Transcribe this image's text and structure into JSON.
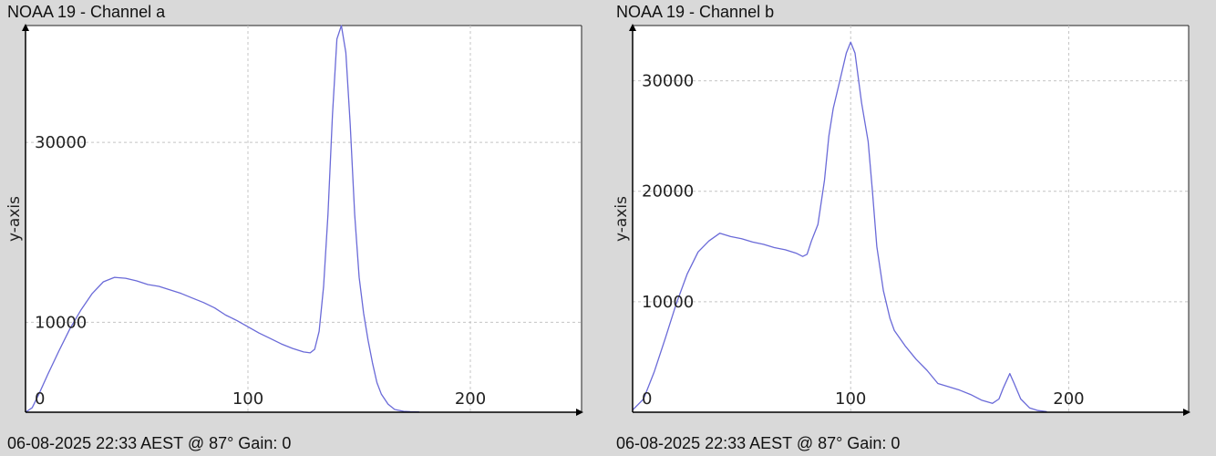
{
  "chart_data": [
    {
      "type": "line",
      "title": "NOAA 19 - Channel a",
      "footer": "06-08-2025 22:33 AEST @ 87° Gain: 0",
      "xlabel": "",
      "ylabel": "y-axis",
      "xlim": [
        0,
        250
      ],
      "ylim": [
        0,
        43000
      ],
      "x_ticks": [
        0,
        100,
        200
      ],
      "y_ticks": [
        10000,
        30000
      ],
      "grid": true,
      "line_color": "#6a6ad8",
      "series": [
        {
          "x": [
            0,
            3,
            6,
            10,
            15,
            20,
            25,
            30,
            35,
            40,
            45,
            50,
            55,
            60,
            65,
            70,
            75,
            80,
            85,
            90,
            95,
            100,
            105,
            110,
            115,
            120,
            125,
            128,
            130,
            132,
            134,
            136,
            138,
            140,
            142,
            144,
            146,
            148,
            150,
            152,
            154,
            156,
            158,
            160,
            163,
            166,
            170,
            173,
            177
          ],
          "y": [
            0,
            500,
            2000,
            4200,
            6800,
            9300,
            11400,
            13200,
            14500,
            15000,
            14900,
            14600,
            14200,
            14000,
            13600,
            13200,
            12700,
            12200,
            11600,
            10800,
            10200,
            9500,
            8800,
            8200,
            7600,
            7100,
            6700,
            6600,
            7000,
            9000,
            14000,
            22000,
            33000,
            41500,
            43000,
            40000,
            32000,
            22000,
            15000,
            11000,
            8000,
            5500,
            3300,
            2000,
            900,
            300,
            100,
            60,
            40
          ]
        }
      ]
    },
    {
      "type": "line",
      "title": "NOAA 19 - Channel b",
      "footer": "06-08-2025 22:33 AEST @ 87° Gain: 0",
      "xlabel": "",
      "ylabel": "y-axis",
      "xlim": [
        0,
        255
      ],
      "ylim": [
        0,
        35000
      ],
      "x_ticks": [
        0,
        100,
        200
      ],
      "y_ticks": [
        10000,
        20000,
        30000
      ],
      "grid": true,
      "line_color": "#6a6ad8",
      "series": [
        {
          "x": [
            0,
            5,
            10,
            15,
            20,
            25,
            30,
            35,
            40,
            45,
            50,
            55,
            60,
            65,
            70,
            75,
            78,
            80,
            82,
            85,
            88,
            90,
            92,
            95,
            98,
            100,
            102,
            105,
            108,
            110,
            112,
            115,
            118,
            120,
            125,
            130,
            135,
            140,
            145,
            150,
            155,
            160,
            165,
            168,
            170,
            173,
            175,
            178,
            182,
            186,
            190
          ],
          "y": [
            200,
            1200,
            3700,
            6700,
            9800,
            12500,
            14500,
            15500,
            16200,
            15900,
            15700,
            15400,
            15200,
            14900,
            14700,
            14400,
            14100,
            14300,
            15500,
            17000,
            21000,
            25000,
            27500,
            30000,
            32500,
            33500,
            32500,
            28000,
            24500,
            20000,
            15000,
            11000,
            8500,
            7400,
            6000,
            4800,
            3800,
            2600,
            2300,
            2000,
            1600,
            1100,
            800,
            1200,
            2200,
            3500,
            2600,
            1200,
            400,
            150,
            50
          ]
        }
      ]
    }
  ]
}
